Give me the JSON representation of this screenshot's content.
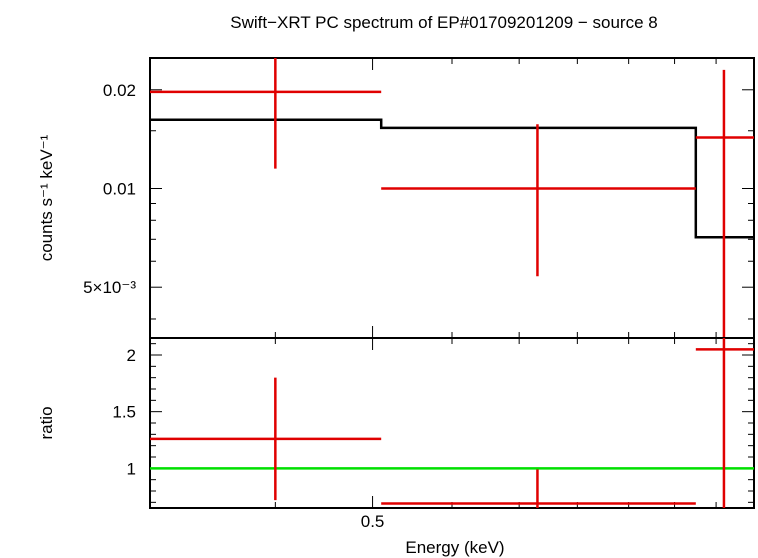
{
  "chart_data": [
    {
      "type": "scatter",
      "title": "Swift−XRT PC spectrum of EP#01709201209 − source 8",
      "xlabel": "",
      "ylabel": "counts s⁻¹ keV⁻¹",
      "xscale": "log",
      "yscale": "log",
      "xlim": [
        0.3,
        1.2
      ],
      "ylim": [
        0.0035,
        0.025
      ],
      "yticks": [
        {
          "value": 0.02,
          "label": "0.02"
        },
        {
          "value": 0.01,
          "label": "0.01"
        },
        {
          "value": 0.005,
          "label": "5×10⁻³"
        }
      ],
      "series": [
        {
          "kind": "data",
          "color": "#e00000",
          "points": [
            {
              "x": 0.4,
              "xlo": 0.3,
              "xhi": 0.51,
              "y": 0.0197,
              "ylo": 0.0115,
              "yhi": 0.025
            },
            {
              "x": 0.73,
              "xlo": 0.51,
              "xhi": 1.05,
              "y": 0.01,
              "ylo": 0.0054,
              "yhi": 0.0157
            },
            {
              "x": 1.12,
              "xlo": 1.05,
              "xhi": 1.2,
              "y": 0.0143,
              "ylo": 0.0035,
              "yhi": 0.023
            }
          ]
        },
        {
          "kind": "model",
          "color": "#000000",
          "steps": [
            {
              "x0": 0.3,
              "x1": 0.51,
              "y": 0.0162
            },
            {
              "x0": 0.51,
              "x1": 1.05,
              "y": 0.0153
            },
            {
              "x0": 1.05,
              "x1": 1.2,
              "y": 0.0071
            }
          ]
        }
      ]
    },
    {
      "type": "scatter",
      "title": "",
      "xlabel": "Energy (keV)",
      "ylabel": "ratio",
      "xscale": "log",
      "xlim": [
        0.3,
        1.2
      ],
      "ylim": [
        0.65,
        2.15
      ],
      "xticks": [
        {
          "value": 0.5,
          "label": "0.5"
        }
      ],
      "yticks": [
        {
          "value": 2,
          "label": "2"
        },
        {
          "value": 1.5,
          "label": "1.5"
        },
        {
          "value": 1,
          "label": "1"
        }
      ],
      "reference_line": {
        "y": 1,
        "color": "#00e000"
      },
      "series": [
        {
          "kind": "ratio",
          "color": "#e00000",
          "points": [
            {
              "x": 0.4,
              "xlo": 0.3,
              "xhi": 0.51,
              "y": 1.26,
              "ylo": 0.72,
              "yhi": 1.8
            },
            {
              "x": 0.73,
              "xlo": 0.51,
              "xhi": 1.05,
              "y": 0.69,
              "ylo": 0.65,
              "yhi": 0.99
            },
            {
              "x": 1.12,
              "xlo": 1.05,
              "xhi": 1.2,
              "y": 2.05,
              "ylo": 0.65,
              "yhi": 2.15
            }
          ]
        }
      ]
    }
  ]
}
